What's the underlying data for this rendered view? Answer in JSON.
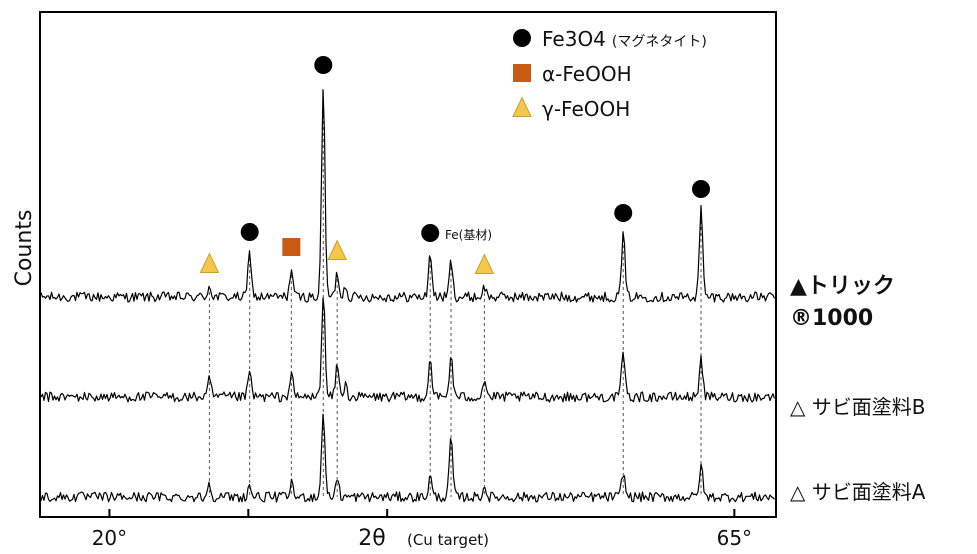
{
  "chart_data": {
    "type": "line",
    "title": "",
    "xlabel": "2θ",
    "xlabel_note": "(Cu target)",
    "ylabel": "Counts",
    "xlim": [
      15,
      68
    ],
    "x_ticks": [
      {
        "value": 20,
        "label": "20°"
      },
      {
        "value": 30,
        "label": ""
      },
      {
        "value": 40,
        "label": ""
      },
      {
        "value": 65,
        "label": "65°"
      }
    ],
    "grid": false,
    "legend_position": "top-right",
    "legend": [
      {
        "marker": "circle",
        "color": "#000000",
        "label_main": "Fe3O4",
        "label_note": "(マグネタイト)"
      },
      {
        "marker": "square",
        "color": "#c85a14",
        "label_main": "α-FeOOH",
        "label_note": ""
      },
      {
        "marker": "triangle",
        "color": "#f5c84c",
        "label_main": "γ-FeOOH",
        "label_note": ""
      }
    ],
    "series": [
      {
        "name": "▲トリック ®1000",
        "name_line1": "▲トリック",
        "name_line2": "®1000",
        "baseline": 2.0,
        "peaks": [
          {
            "x": 27.2,
            "h": 0.11
          },
          {
            "x": 30.1,
            "h": 0.45
          },
          {
            "x": 33.1,
            "h": 0.28
          },
          {
            "x": 35.4,
            "h": 2.12
          },
          {
            "x": 36.4,
            "h": 0.24
          },
          {
            "x": 37.0,
            "h": 0.11
          },
          {
            "x": 43.1,
            "h": 0.44
          },
          {
            "x": 44.6,
            "h": 0.36
          },
          {
            "x": 47.0,
            "h": 0.1
          },
          {
            "x": 57.0,
            "h": 0.64
          },
          {
            "x": 62.6,
            "h": 0.88
          }
        ]
      },
      {
        "name": "△ サビ面塗料B",
        "baseline": 1.0,
        "peaks": [
          {
            "x": 27.2,
            "h": 0.17
          },
          {
            "x": 30.1,
            "h": 0.25
          },
          {
            "x": 33.1,
            "h": 0.23
          },
          {
            "x": 35.4,
            "h": 1.05
          },
          {
            "x": 36.4,
            "h": 0.32
          },
          {
            "x": 37.0,
            "h": 0.12
          },
          {
            "x": 43.1,
            "h": 0.38
          },
          {
            "x": 44.6,
            "h": 0.42
          },
          {
            "x": 47.0,
            "h": 0.18
          },
          {
            "x": 57.0,
            "h": 0.46
          },
          {
            "x": 62.6,
            "h": 0.41
          }
        ]
      },
      {
        "name": "△ サビ面塗料A",
        "baseline": 0.0,
        "peaks": [
          {
            "x": 27.2,
            "h": 0.14
          },
          {
            "x": 30.1,
            "h": 0.11
          },
          {
            "x": 33.1,
            "h": 0.13
          },
          {
            "x": 35.4,
            "h": 0.86
          },
          {
            "x": 36.4,
            "h": 0.19
          },
          {
            "x": 43.1,
            "h": 0.2
          },
          {
            "x": 44.6,
            "h": 0.6
          },
          {
            "x": 47.0,
            "h": 0.1
          },
          {
            "x": 57.0,
            "h": 0.25
          },
          {
            "x": 62.6,
            "h": 0.32
          }
        ]
      }
    ],
    "markers": [
      {
        "x": 27.2,
        "type": "triangle"
      },
      {
        "x": 30.1,
        "type": "circle"
      },
      {
        "x": 33.1,
        "type": "square"
      },
      {
        "x": 35.4,
        "type": "circle"
      },
      {
        "x": 36.4,
        "type": "triangle"
      },
      {
        "x": 43.1,
        "type": "circle"
      },
      {
        "x": 47.0,
        "type": "triangle"
      },
      {
        "x": 57.0,
        "type": "circle"
      },
      {
        "x": 62.6,
        "type": "circle"
      }
    ],
    "annotations": [
      {
        "x": 44.6,
        "text": "Fe(基材)"
      }
    ]
  }
}
